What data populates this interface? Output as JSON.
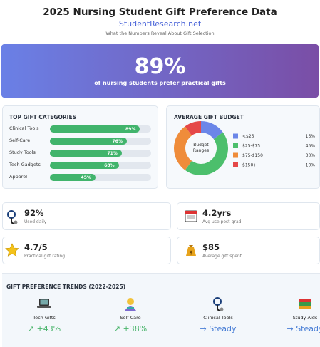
{
  "header": {
    "title": "2025 Nursing Student Gift Preference Data",
    "site": "StudentResearch.net",
    "subtitle": "What the Numbers Reveal About Gift Selection"
  },
  "hero": {
    "value": "89%",
    "caption": "of nursing students prefer practical gifts"
  },
  "categories": {
    "title": "TOP GIFT CATEGORIES",
    "xlim": [
      0,
      100
    ],
    "color": "#41b46c",
    "items": [
      {
        "name": "Clinical Tools",
        "value": 89,
        "label": "89%"
      },
      {
        "name": "Self-Care",
        "value": 76,
        "label": "76%"
      },
      {
        "name": "Study Tools",
        "value": 71,
        "label": "71%"
      },
      {
        "name": "Tech Gadgets",
        "value": 68,
        "label": "68%"
      },
      {
        "name": "Apparel",
        "value": 45,
        "label": "45%"
      }
    ]
  },
  "budget": {
    "title": "AVERAGE GIFT BUDGET",
    "center": [
      "Budget",
      "Ranges"
    ],
    "items": [
      {
        "name": "<$25",
        "value": 15,
        "label": "15%",
        "color": "#6b86e8"
      },
      {
        "name": "$25-$75",
        "value": 45,
        "label": "45%",
        "color": "#4cbf6c"
      },
      {
        "name": "$75-$150",
        "value": 30,
        "label": "30%",
        "color": "#ef8c3a"
      },
      {
        "name": "$150+",
        "value": 10,
        "label": "10%",
        "color": "#e54848"
      }
    ]
  },
  "stats": [
    {
      "value": "92%",
      "caption": "Used daily"
    },
    {
      "value": "4.2yrs",
      "caption": "Avg use post-grad"
    },
    {
      "value": "4.7/5",
      "caption": "Practical gift rating"
    },
    {
      "value": "$85",
      "caption": "Average gift spent"
    }
  ],
  "trends": {
    "title": "GIFT PREFERENCE TRENDS (2022-2025)",
    "items": [
      {
        "name": "Tech Gifts",
        "trend": "↗ +43%",
        "color": "#48b46a"
      },
      {
        "name": "Self-Care",
        "trend": "↗ +38%",
        "color": "#48b46a"
      },
      {
        "name": "Clinical Tools",
        "trend": "→ Steady",
        "color": "#4a7fd6"
      },
      {
        "name": "Study Aids",
        "trend": "→ Steady",
        "color": "#4a7fd6"
      }
    ]
  }
}
